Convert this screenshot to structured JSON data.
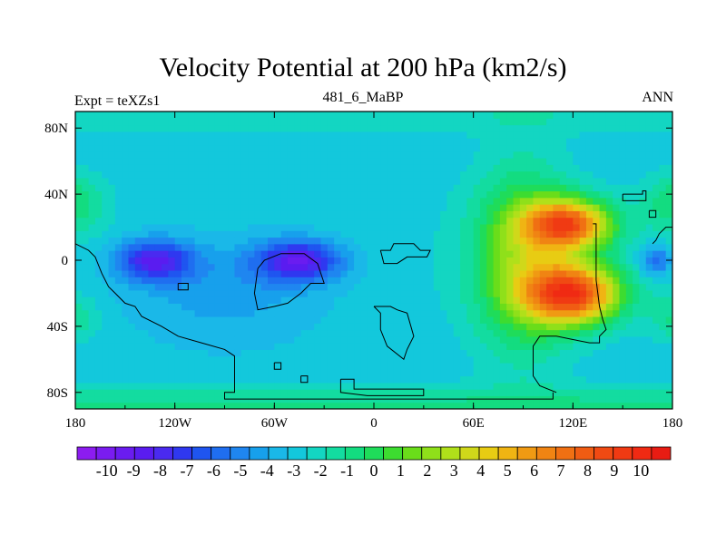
{
  "chart_data": {
    "type": "heatmap",
    "title": "Velocity Potential at 200 hPa (km2/s)",
    "left_label": "Expt = teXZs1",
    "center_label": "481_6_MaBP",
    "right_label": "ANN",
    "x_range": [
      -180,
      180
    ],
    "y_range": [
      -90,
      90
    ],
    "x_ticks": [
      {
        "value": -180,
        "label": "180"
      },
      {
        "value": -120,
        "label": "120W"
      },
      {
        "value": -60,
        "label": "60W"
      },
      {
        "value": 0,
        "label": "0"
      },
      {
        "value": 60,
        "label": "60E"
      },
      {
        "value": 120,
        "label": "120E"
      },
      {
        "value": 180,
        "label": "180"
      }
    ],
    "y_ticks": [
      {
        "value": 80,
        "label": "80N"
      },
      {
        "value": 40,
        "label": "40N"
      },
      {
        "value": 0,
        "label": "0"
      },
      {
        "value": -40,
        "label": "40S"
      },
      {
        "value": -80,
        "label": "80S"
      }
    ],
    "colorbar": {
      "levels": [
        -10,
        -9,
        -8,
        -7,
        -6,
        -5,
        -4,
        -3,
        -2,
        -1,
        0,
        1,
        2,
        3,
        4,
        5,
        6,
        7,
        8,
        9,
        10
      ],
      "labels": [
        "-10",
        "-9",
        "-8",
        "-7",
        "-6",
        "-5",
        "-4",
        "-3",
        "-2",
        "-1",
        "0",
        "1",
        "2",
        "3",
        "4",
        "5",
        "6",
        "7",
        "8",
        "9",
        "10"
      ],
      "colors": [
        "#8c1cf0",
        "#7a1cf0",
        "#6a1cf0",
        "#5a1cf0",
        "#4a2af0",
        "#2f38f0",
        "#1f55f0",
        "#1f6ef0",
        "#1f86f0",
        "#17a0ec",
        "#1ab8e8",
        "#13c8dc",
        "#13d6c2",
        "#13dca0",
        "#13dc80",
        "#1fdc5a",
        "#3ddc30",
        "#6add1a",
        "#8fe01a",
        "#b0e01a",
        "#d0d81a",
        "#e8cc13",
        "#f0b413",
        "#f09a13",
        "#f08413",
        "#f07013",
        "#f05c13",
        "#f04a13",
        "#f03a13",
        "#f02a13",
        "#e81c13"
      ]
    },
    "field_features": [
      {
        "name": "minimum",
        "lon": -135,
        "lat": 0,
        "value": -8.0
      },
      {
        "name": "minimum",
        "lon": -45,
        "lat": 0,
        "value": -8.2
      },
      {
        "name": "maximum",
        "lon": 122,
        "lat": -20,
        "value": 8.4
      },
      {
        "name": "maximum",
        "lon": 120,
        "lat": 22,
        "value": 8.1
      }
    ]
  }
}
